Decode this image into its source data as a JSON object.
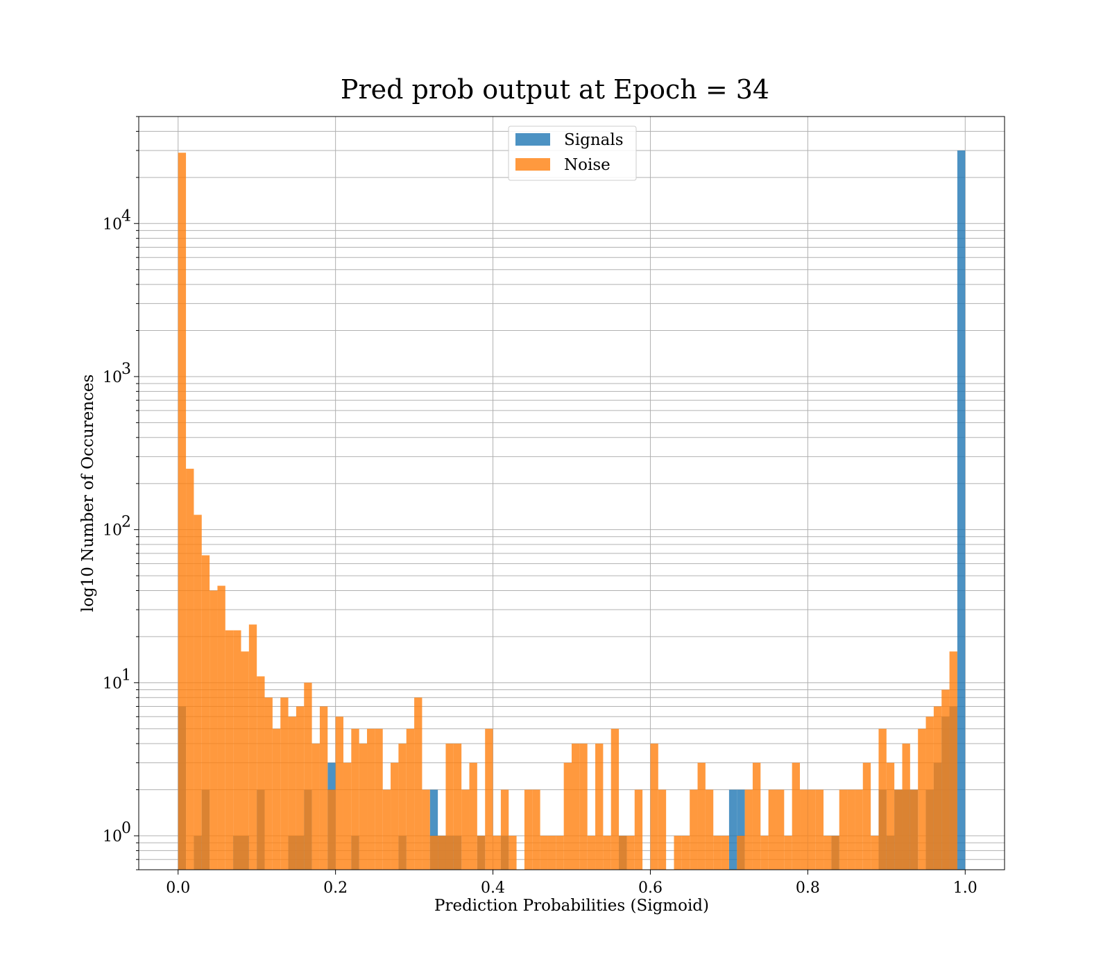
{
  "chart_data": {
    "type": "bar",
    "title": "Pred prob output at Epoch = 34",
    "xlabel": "Prediction Probabilities (Sigmoid)",
    "ylabel": "log10 Number of Occurences",
    "yscale": "log",
    "xlim": [
      -0.05,
      1.05
    ],
    "ylim": [
      0.6,
      50000
    ],
    "x_ticks": [
      {
        "value": 0.0,
        "label": "0.0"
      },
      {
        "value": 0.2,
        "label": "0.2"
      },
      {
        "value": 0.4,
        "label": "0.4"
      },
      {
        "value": 0.6,
        "label": "0.6"
      },
      {
        "value": 0.8,
        "label": "0.8"
      },
      {
        "value": 1.0,
        "label": "1.0"
      }
    ],
    "y_ticks": [
      {
        "value": 1,
        "base": "10",
        "exp": "0"
      },
      {
        "value": 10,
        "base": "10",
        "exp": "1"
      },
      {
        "value": 100,
        "base": "10",
        "exp": "2"
      },
      {
        "value": 1000,
        "base": "10",
        "exp": "3"
      },
      {
        "value": 10000,
        "base": "10",
        "exp": "4"
      }
    ],
    "grid": true,
    "legend_position": "top-center",
    "bin_edges": [
      0.0,
      1.0
    ],
    "bin_count": 100,
    "series": [
      {
        "name": "Signals",
        "color": "#1f77b4",
        "values": [
          7,
          0,
          1,
          2,
          0,
          0,
          0,
          1,
          1,
          0,
          2,
          0,
          0,
          0,
          1,
          1,
          2,
          0,
          0,
          3,
          0,
          0,
          1,
          0,
          0,
          0,
          0,
          0,
          1,
          0,
          0,
          0,
          2,
          1,
          1,
          1,
          0,
          0,
          1,
          0,
          0,
          1,
          0,
          0,
          0,
          0,
          0,
          0,
          0,
          0,
          0,
          0,
          0,
          0,
          0,
          0,
          1,
          0,
          0,
          0,
          0,
          0,
          0,
          0,
          0,
          0,
          0,
          0,
          0,
          0,
          2,
          2,
          0,
          0,
          0,
          0,
          0,
          0,
          0,
          0,
          0,
          0,
          0,
          1,
          0,
          0,
          0,
          0,
          0,
          2,
          1,
          2,
          2,
          2,
          0,
          2,
          3,
          6,
          7,
          30000
        ]
      },
      {
        "name": "Noise",
        "color": "#ff7f0e",
        "values": [
          29000,
          250,
          125,
          68,
          40,
          43,
          22,
          22,
          16,
          24,
          11,
          8,
          5,
          8,
          6,
          7,
          10,
          4,
          7,
          2,
          6,
          3,
          5,
          4,
          5,
          5,
          2,
          3,
          4,
          5,
          8,
          2,
          1,
          1,
          4,
          4,
          2,
          3,
          1,
          5,
          1,
          2,
          1,
          0,
          2,
          2,
          1,
          1,
          1,
          3,
          4,
          4,
          1,
          4,
          1,
          5,
          1,
          1,
          2,
          0,
          4,
          2,
          0,
          1,
          1,
          2,
          3,
          2,
          1,
          1,
          0,
          1,
          2,
          3,
          1,
          2,
          2,
          1,
          3,
          2,
          2,
          2,
          1,
          1,
          2,
          2,
          2,
          3,
          1,
          5,
          3,
          2,
          4,
          2,
          5,
          6,
          7,
          9,
          16,
          0
        ]
      }
    ]
  }
}
